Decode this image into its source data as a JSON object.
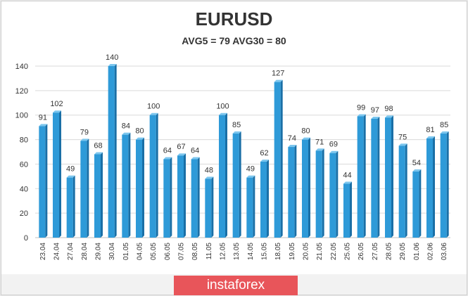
{
  "chart_data": {
    "type": "bar",
    "title": "EURUSD",
    "subtitle": "AVG5 = 79 AVG30 = 80",
    "categories": [
      "23.04",
      "24.04",
      "27.04",
      "28.04",
      "29.04",
      "30.04",
      "01.05",
      "04.05",
      "05.05",
      "06.05",
      "07.05",
      "08.05",
      "11.05",
      "12.05",
      "13.05",
      "14.05",
      "15.05",
      "18.05",
      "19.05",
      "20.05",
      "21.05",
      "22.05",
      "25.05",
      "26.05",
      "27.05",
      "28.05",
      "29.05",
      "01.06",
      "02.06",
      "03.06"
    ],
    "values": [
      91,
      102,
      49,
      79,
      68,
      140,
      84,
      80,
      100,
      64,
      67,
      64,
      48,
      100,
      85,
      49,
      62,
      127,
      74,
      80,
      71,
      69,
      44,
      99,
      97,
      98,
      75,
      54,
      81,
      85
    ],
    "ylim": [
      0,
      140
    ],
    "yticks": [
      0,
      20,
      40,
      60,
      80,
      100,
      120,
      140
    ],
    "grid": true,
    "legend": "none",
    "bar_color": "#2e9ad8",
    "bar_dark_color": "#1a6fa6",
    "bar_light_color": "#7cc6ee"
  },
  "watermark": {
    "text": "instaforex",
    "color": "#e8555a"
  }
}
